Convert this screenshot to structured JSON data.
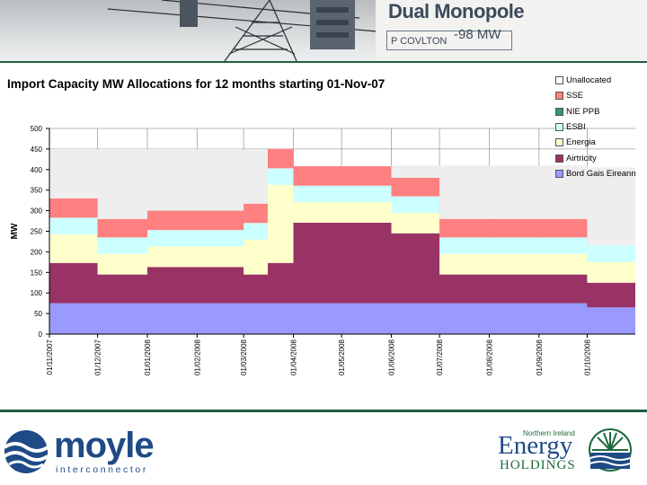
{
  "banner": {
    "sign_title": "Dual Monopole",
    "sign_sub": "P COVLTON",
    "sign_mw": "-98 MW"
  },
  "chart_data": {
    "type": "area",
    "title": "Import Capacity MW Allocations for 12 months starting 01-Nov-07",
    "ylabel": "MW",
    "xlabel": "",
    "ylim": [
      0,
      500
    ],
    "yticks": [
      0,
      50,
      100,
      150,
      200,
      250,
      300,
      350,
      400,
      450,
      500
    ],
    "grid": true,
    "stacked": true,
    "legend_position": "right",
    "x_tick_labels": [
      "01/11/2007",
      "01/12/2007",
      "01/01/2008",
      "01/02/2008",
      "01/03/2008",
      "01/04/2008",
      "01/05/2008",
      "01/06/2008",
      "01/07/2008",
      "01/08/2008",
      "01/09/2008",
      "01/10/2008"
    ],
    "x_breakpoints": [
      "01/11/2007",
      "01/12/2007",
      "01/01/2008",
      "01/03/2008",
      "16/03/2008",
      "01/04/2008",
      "01/06/2008",
      "01/07/2008",
      "01/10/2008",
      "31/10/2008"
    ],
    "series": [
      {
        "name": "Bord Gais Eireann",
        "color": "#9999ff",
        "values": [
          75,
          75,
          75,
          75,
          75,
          75,
          75,
          75,
          65
        ]
      },
      {
        "name": "Airtricity",
        "color": "#993366",
        "values": [
          98,
          70,
          88,
          70,
          98,
          196,
          170,
          70,
          60
        ]
      },
      {
        "name": "Energia",
        "color": "#ffffcc",
        "values": [
          70,
          50,
          50,
          85,
          190,
          50,
          50,
          50,
          50
        ]
      },
      {
        "name": "ESBI",
        "color": "#ccffff",
        "values": [
          40,
          40,
          40,
          40,
          40,
          40,
          40,
          40,
          40
        ]
      },
      {
        "name": "NIE PPB",
        "color": "#339966",
        "values": [
          0,
          0,
          0,
          0,
          0,
          0,
          0,
          0,
          0
        ]
      },
      {
        "name": "SSE",
        "color": "#ff8080",
        "values": [
          47,
          45,
          47,
          47,
          47,
          47,
          45,
          45,
          0
        ]
      },
      {
        "name": "Unallocated",
        "color": "#eeeeee",
        "values": [
          120,
          170,
          150,
          130,
          0,
          0,
          30,
          130,
          190
        ]
      }
    ],
    "colors": {
      "grid": "#a0a0a0",
      "plot_area": "#ffffff",
      "axis": "#000000"
    }
  },
  "legend": {
    "items": [
      {
        "name": "Unallocated",
        "color": "#ffffff"
      },
      {
        "name": "SSE",
        "color": "#ff8080"
      },
      {
        "name": "NIE PPB",
        "color": "#339966"
      },
      {
        "name": "ESBI",
        "color": "#ccffff"
      },
      {
        "name": "Energia",
        "color": "#ffffcc"
      },
      {
        "name": "Airtricity",
        "color": "#993366"
      },
      {
        "name": "Bord Gais Eireann",
        "color": "#9999ff"
      }
    ]
  },
  "footer": {
    "moyle_word": "moyle",
    "moyle_sub": "interconnector",
    "nie_top": "Northern Ireland",
    "nie_energy": "Energy",
    "nie_holdings": "HOLDINGS"
  }
}
